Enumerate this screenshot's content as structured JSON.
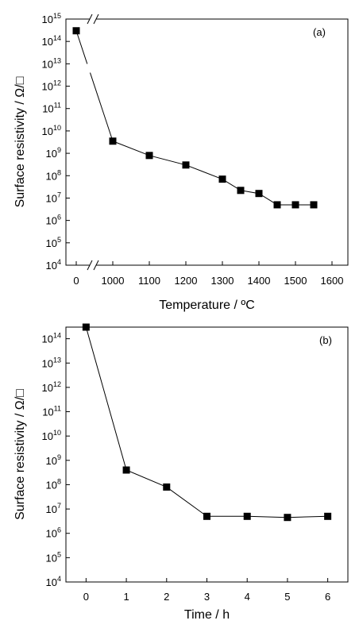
{
  "chart_data": [
    {
      "panel": "(a)",
      "type": "scatter",
      "mode": "lines+markers",
      "xlabel": "Temperature / ºC",
      "ylabel": "Surface resistivity / Ω/□",
      "x_ticks": [
        "0",
        "1000",
        "1100",
        "1200",
        "1300",
        "1400",
        "1500",
        "1600"
      ],
      "x_axis_break": "between 0 and 1000",
      "y_scale": "log",
      "y_ticks": [
        "4",
        "5",
        "6",
        "7",
        "8",
        "9",
        "10",
        "11",
        "12",
        "13",
        "14",
        "15"
      ],
      "y_tick_base": "10",
      "ylim": [
        10000,
        1000000000000000
      ],
      "points": [
        {
          "x": 0,
          "y": 300000000000000
        },
        {
          "x": 1000,
          "y": 3500000000
        },
        {
          "x": 1100,
          "y": 800000000
        },
        {
          "x": 1200,
          "y": 300000000
        },
        {
          "x": 1300,
          "y": 70000000
        },
        {
          "x": 1350,
          "y": 22000000
        },
        {
          "x": 1400,
          "y": 16000000
        },
        {
          "x": 1450,
          "y": 5000000
        },
        {
          "x": 1500,
          "y": 5000000
        },
        {
          "x": 1550,
          "y": 5000000
        }
      ]
    },
    {
      "panel": "(b)",
      "type": "scatter",
      "mode": "lines+markers",
      "xlabel": "Time / h",
      "ylabel": "Surface resistivity / Ω/□",
      "x_ticks": [
        "0",
        "1",
        "2",
        "3",
        "4",
        "5",
        "6"
      ],
      "xlim": [
        -0.5,
        6.5
      ],
      "y_scale": "log",
      "y_ticks": [
        "4",
        "5",
        "6",
        "7",
        "8",
        "9",
        "10",
        "11",
        "12",
        "13",
        "14"
      ],
      "y_tick_base": "10",
      "ylim": [
        10000,
        300000000000000
      ],
      "points": [
        {
          "x": 0,
          "y": 300000000000000
        },
        {
          "x": 1,
          "y": 400000000
        },
        {
          "x": 2,
          "y": 80000000
        },
        {
          "x": 3,
          "y": 5000000
        },
        {
          "x": 4,
          "y": 5000000
        },
        {
          "x": 5,
          "y": 4500000
        },
        {
          "x": 6,
          "y": 5000000
        }
      ]
    }
  ]
}
